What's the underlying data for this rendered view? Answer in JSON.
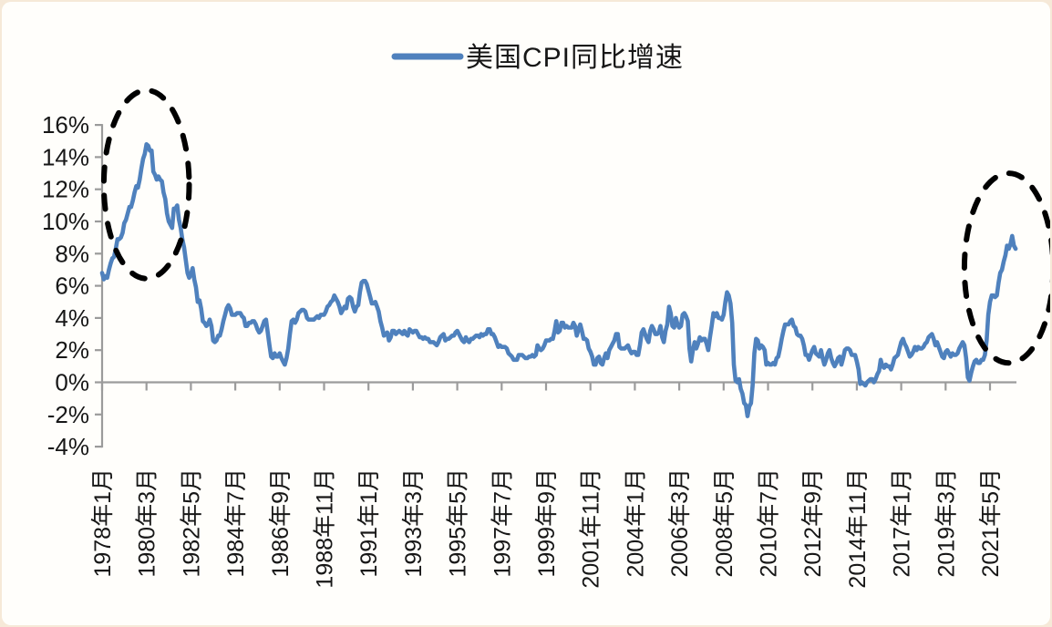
{
  "colors": {
    "line": "#4F81BD",
    "axis": "#9b9b9b",
    "text": "#171717",
    "annotation": "#000000",
    "background": "#fffefb",
    "page_edge": "#f6e9d8"
  },
  "legend": {
    "label": "美国CPI同比增速",
    "marker": "line-swatch"
  },
  "chart_data": {
    "type": "line",
    "title": "",
    "series_name": "美国CPI同比增速",
    "x_start": "1978-01",
    "x_end": "2022-08",
    "x_interval": "monthly",
    "xlabel": "",
    "ylabel": "",
    "y_unit": "%",
    "ylim": [
      -4,
      16
    ],
    "grid": false,
    "legend_position": "top-center",
    "y_ticks": [
      16,
      14,
      12,
      10,
      8,
      6,
      4,
      2,
      0,
      -2,
      -4
    ],
    "y_tick_labels": [
      "16%",
      "14%",
      "12%",
      "10%",
      "8%",
      "6%",
      "4%",
      "2%",
      "0%",
      "-2%",
      "-4%"
    ],
    "x_tick_labels": [
      "1978年1月",
      "1980年3月",
      "1982年5月",
      "1984年7月",
      "1986年9月",
      "1988年11月",
      "1991年1月",
      "1993年3月",
      "1995年5月",
      "1997年7月",
      "1999年9月",
      "2001年11月",
      "2004年1月",
      "2006年3月",
      "2008年5月",
      "2010年7月",
      "2012年9月",
      "2014年11月",
      "2017年1月",
      "2019年3月",
      "2021年5月"
    ],
    "x_tick_interval_months": 26,
    "values": [
      6.8,
      6.4,
      6.6,
      6.5,
      7.0,
      7.4,
      7.7,
      7.8,
      8.3,
      8.9,
      8.9,
      9.0,
      9.3,
      9.9,
      10.1,
      10.5,
      10.9,
      10.9,
      11.3,
      11.8,
      12.2,
      12.1,
      12.6,
      13.3,
      13.9,
      14.2,
      14.8,
      14.7,
      14.4,
      14.4,
      13.1,
      12.9,
      12.6,
      12.8,
      12.6,
      12.5,
      11.8,
      11.4,
      10.5,
      10.0,
      9.8,
      9.6,
      10.8,
      10.8,
      11.0,
      10.1,
      9.6,
      8.9,
      8.4,
      7.6,
      6.8,
      6.5,
      6.7,
      7.1,
      6.4,
      5.9,
      5.0,
      5.1,
      4.6,
      3.8,
      3.7,
      3.5,
      3.6,
      3.9,
      3.5,
      2.6,
      2.5,
      2.6,
      2.9,
      2.9,
      3.3,
      3.8,
      4.2,
      4.6,
      4.8,
      4.6,
      4.2,
      4.2,
      4.2,
      4.3,
      4.3,
      4.3,
      4.1,
      4.0,
      3.5,
      3.5,
      3.7,
      3.7,
      3.8,
      3.8,
      3.6,
      3.3,
      3.1,
      3.2,
      3.5,
      3.8,
      3.9,
      3.1,
      2.3,
      1.6,
      1.5,
      1.8,
      1.6,
      1.6,
      1.8,
      1.5,
      1.3,
      1.1,
      1.5,
      2.1,
      3.0,
      3.8,
      3.9,
      3.7,
      3.9,
      4.3,
      4.4,
      4.5,
      4.5,
      4.4,
      4.0,
      3.9,
      3.9,
      3.9,
      3.9,
      4.0,
      4.1,
      4.0,
      4.2,
      4.2,
      4.2,
      4.4,
      4.7,
      4.8,
      5.0,
      5.1,
      5.4,
      5.2,
      5.0,
      4.7,
      4.3,
      4.5,
      4.7,
      4.6,
      5.2,
      5.3,
      5.2,
      4.7,
      4.4,
      4.7,
      4.8,
      5.6,
      6.2,
      6.3,
      6.3,
      6.1,
      5.7,
      5.3,
      4.9,
      4.9,
      5.0,
      4.7,
      4.4,
      3.8,
      3.4,
      2.9,
      3.0,
      3.1,
      2.6,
      2.8,
      3.2,
      3.2,
      3.0,
      3.1,
      3.2,
      3.1,
      3.0,
      3.2,
      3.0,
      2.9,
      3.3,
      3.2,
      3.1,
      3.2,
      3.2,
      3.0,
      2.8,
      2.8,
      2.7,
      2.8,
      2.7,
      2.7,
      2.5,
      2.5,
      2.5,
      2.4,
      2.3,
      2.5,
      2.8,
      2.9,
      3.0,
      2.6,
      2.7,
      2.7,
      2.8,
      2.9,
      2.9,
      3.1,
      3.2,
      3.0,
      2.8,
      2.6,
      2.5,
      2.8,
      2.6,
      2.5,
      2.7,
      2.7,
      2.8,
      2.9,
      2.9,
      2.8,
      3.0,
      2.9,
      3.0,
      3.0,
      3.3,
      3.3,
      3.0,
      3.0,
      2.8,
      2.5,
      2.2,
      2.3,
      2.2,
      2.2,
      2.2,
      2.1,
      1.8,
      1.7,
      1.6,
      1.4,
      1.4,
      1.4,
      1.7,
      1.7,
      1.7,
      1.6,
      1.5,
      1.5,
      1.6,
      1.6,
      1.7,
      1.6,
      1.7,
      2.3,
      2.1,
      2.0,
      2.1,
      2.3,
      2.6,
      2.6,
      2.6,
      2.7,
      2.7,
      3.2,
      3.8,
      3.1,
      3.2,
      3.7,
      3.7,
      3.4,
      3.5,
      3.4,
      3.4,
      3.4,
      3.7,
      3.5,
      2.9,
      3.3,
      3.6,
      3.2,
      2.7,
      2.7,
      2.6,
      2.1,
      1.9,
      1.6,
      1.1,
      1.1,
      1.5,
      1.6,
      1.2,
      1.1,
      1.5,
      1.8,
      1.5,
      2.0,
      2.2,
      2.4,
      2.6,
      3.0,
      3.0,
      2.2,
      2.1,
      2.1,
      2.1,
      2.2,
      2.3,
      2.0,
      1.8,
      1.9,
      1.9,
      1.7,
      1.7,
      2.3,
      3.1,
      3.3,
      3.0,
      2.7,
      2.5,
      3.2,
      3.5,
      3.3,
      3.0,
      3.0,
      3.1,
      3.5,
      2.8,
      2.5,
      3.2,
      3.6,
      4.7,
      4.3,
      3.5,
      3.4,
      4.0,
      3.6,
      3.4,
      3.5,
      4.2,
      4.3,
      4.1,
      3.8,
      2.1,
      1.3,
      2.0,
      2.5,
      2.1,
      2.4,
      2.8,
      2.6,
      2.7,
      2.7,
      2.4,
      2.0,
      2.8,
      3.5,
      4.3,
      4.1,
      4.3,
      4.0,
      4.0,
      3.9,
      4.2,
      5.0,
      5.6,
      5.4,
      4.9,
      3.7,
      1.1,
      0.1,
      0.0,
      0.2,
      -0.4,
      -0.7,
      -1.3,
      -1.4,
      -2.1,
      -1.5,
      -1.3,
      -0.2,
      1.8,
      2.7,
      2.6,
      2.1,
      2.3,
      2.2,
      2.0,
      1.1,
      1.2,
      1.1,
      1.1,
      1.2,
      1.1,
      1.5,
      1.6,
      2.1,
      2.7,
      3.2,
      3.6,
      3.6,
      3.6,
      3.8,
      3.9,
      3.5,
      3.4,
      3.0,
      2.9,
      2.9,
      2.7,
      2.3,
      1.7,
      1.7,
      1.4,
      1.7,
      2.0,
      2.2,
      1.8,
      1.7,
      1.6,
      2.0,
      1.5,
      1.1,
      1.4,
      1.8,
      2.0,
      1.5,
      1.2,
      1.0,
      1.2,
      1.5,
      1.6,
      1.1,
      1.5,
      2.0,
      2.1,
      2.1,
      2.0,
      1.7,
      1.7,
      1.7,
      1.3,
      0.8,
      -0.1,
      0.0,
      -0.1,
      -0.2,
      0.0,
      0.1,
      0.2,
      0.2,
      0.0,
      0.2,
      0.5,
      0.7,
      1.4,
      1.0,
      0.9,
      1.1,
      1.0,
      1.0,
      0.8,
      1.1,
      1.5,
      1.6,
      1.7,
      2.1,
      2.5,
      2.7,
      2.4,
      2.2,
      1.9,
      1.6,
      1.7,
      1.9,
      2.2,
      2.0,
      2.2,
      2.1,
      2.1,
      2.2,
      2.4,
      2.5,
      2.8,
      2.9,
      3.0,
      2.7,
      2.3,
      2.5,
      2.2,
      1.9,
      1.6,
      1.5,
      1.9,
      2.0,
      1.8,
      1.6,
      1.8,
      1.7,
      1.7,
      1.8,
      2.1,
      2.3,
      2.5,
      2.3,
      1.5,
      0.3,
      0.1,
      0.6,
      1.0,
      1.3,
      1.4,
      1.2,
      1.2,
      1.4,
      1.4,
      1.7,
      2.6,
      4.2,
      5.0,
      5.4,
      5.4,
      5.3,
      5.4,
      6.2,
      6.8,
      7.0,
      7.5,
      7.9,
      8.5,
      8.3,
      8.6,
      9.1,
      8.5,
      8.3
    ],
    "annotations": [
      {
        "name": "annotation-ellipse-1980-peak",
        "shape": "dashed-ellipse",
        "center_month_index": 26,
        "center_pct": 12.3,
        "rx_months": 25,
        "ry_pct": 5.85,
        "note_peak_pct": 14.8
      },
      {
        "name": "annotation-ellipse-2022-peak",
        "shape": "dashed-ellipse",
        "center_month_index": 531,
        "center_pct": 7.1,
        "rx_months": 26,
        "ry_pct": 5.9,
        "note_peak_pct": 9.1
      }
    ]
  }
}
